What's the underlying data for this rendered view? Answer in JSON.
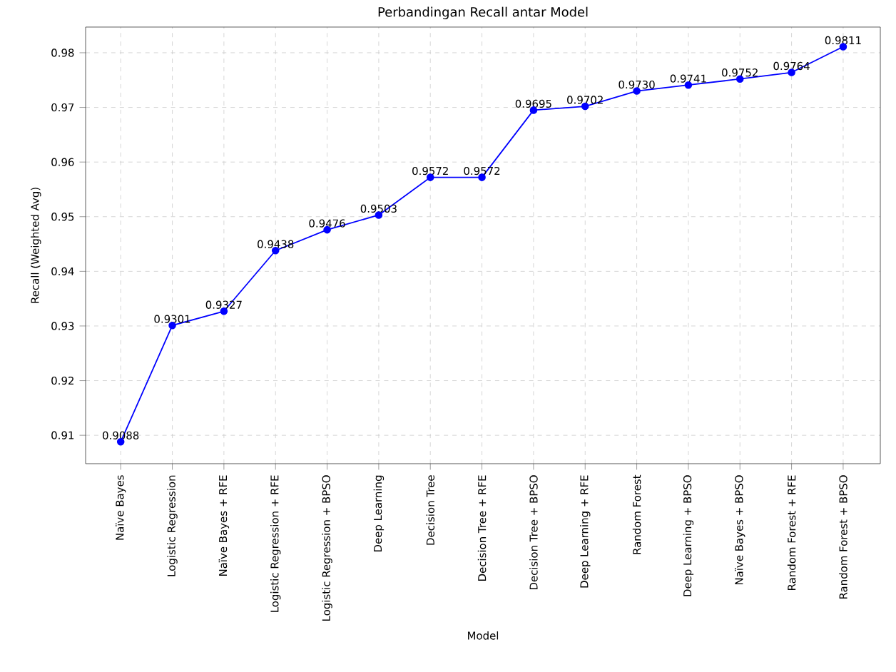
{
  "chart_data": {
    "type": "line",
    "title": "Perbandingan Recall  antar Model",
    "xlabel": "Model",
    "ylabel": "Recall (Weighted Avg)",
    "categories": [
      "Naïve Bayes",
      "Logistic Regression",
      "Naïve Bayes + RFE",
      "Logistic Regression + RFE",
      "Logistic Regression + BPSO",
      "Deep Learning",
      "Decision Tree",
      "Decision Tree + RFE",
      "Decision Tree + BPSO",
      "Deep Learning + RFE",
      "Random Forest",
      "Deep Learning + BPSO",
      "Naïve Bayes + BPSO",
      "Random Forest + RFE",
      "Random Forest + BPSO"
    ],
    "values": [
      0.9088,
      0.9301,
      0.9327,
      0.9438,
      0.9476,
      0.9503,
      0.9572,
      0.9572,
      0.9695,
      0.9702,
      0.973,
      0.9741,
      0.9752,
      0.9764,
      0.9811
    ],
    "value_labels": [
      "0.9088",
      "0.9301",
      "0.9327",
      "0.9438",
      "0.9476",
      "0.9503",
      "0.9572",
      "0.9572",
      "0.9695",
      "0.9702",
      "0.9730",
      "0.9741",
      "0.9752",
      "0.9764",
      "0.9811"
    ],
    "color": "#0000ff",
    "marker": "circle",
    "line_style": "solid",
    "grid": true,
    "ylim": [
      0.9048,
      0.9847
    ],
    "yticks": [
      0.91,
      0.92,
      0.93,
      0.94,
      0.95,
      0.96,
      0.97,
      0.98
    ]
  }
}
